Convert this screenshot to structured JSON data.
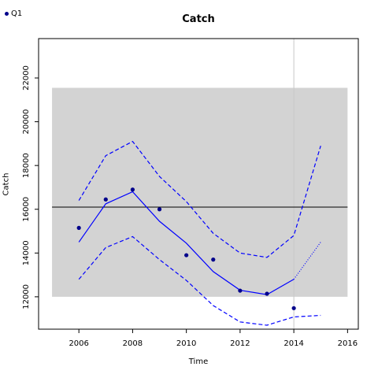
{
  "legend": {
    "label": "Q1",
    "color": "#00008b"
  },
  "chart_data": {
    "type": "line",
    "title": "Catch",
    "xlabel": "Time",
    "ylabel": "Catch",
    "xlim": [
      2004.5,
      2016.4
    ],
    "ylim": [
      10520,
      23800
    ],
    "xticks": [
      2006,
      2008,
      2010,
      2012,
      2014,
      2016
    ],
    "yticks": [
      12000,
      14000,
      16000,
      18000,
      20000,
      22000
    ],
    "grid": false,
    "legend_position": "top-left",
    "shaded_region": {
      "x": [
        2005,
        2016
      ],
      "y": [
        12000,
        21550
      ],
      "color": "#d3d3d3"
    },
    "reference_hline": {
      "y": 16100,
      "color": "#000000"
    },
    "reference_vline": {
      "x": 2014,
      "color": "#c8c8c8"
    },
    "series": [
      {
        "name": "Q1",
        "kind": "points",
        "color": "#00008b",
        "x": [
          2006,
          2007,
          2008,
          2009,
          2010,
          2011,
          2012,
          2013,
          2014
        ],
        "y": [
          15150,
          16450,
          16900,
          16000,
          13900,
          13700,
          12280,
          12140,
          11480
        ]
      },
      {
        "kind": "line",
        "style": "solid",
        "color": "#0000ff",
        "x": [
          2006,
          2007,
          2008,
          2009,
          2010,
          2011,
          2012,
          2013,
          2014
        ],
        "y": [
          14500,
          16250,
          16800,
          15450,
          14450,
          13150,
          12300,
          12100,
          12800
        ]
      },
      {
        "kind": "line",
        "style": "dashed",
        "color": "#0000ff",
        "x": [
          2006,
          2007,
          2008,
          2009,
          2010,
          2011,
          2012,
          2013,
          2014,
          2015
        ],
        "y": [
          16400,
          18450,
          19100,
          17500,
          16350,
          14900,
          14000,
          13800,
          14800,
          18900
        ]
      },
      {
        "kind": "line",
        "style": "dashed",
        "color": "#0000ff",
        "x": [
          2006,
          2007,
          2008,
          2009,
          2010,
          2011,
          2012,
          2013,
          2014,
          2015
        ],
        "y": [
          12800,
          14250,
          14750,
          13700,
          12750,
          11600,
          10850,
          10700,
          11080,
          11150
        ]
      },
      {
        "kind": "line",
        "style": "dotted",
        "color": "#0000ff",
        "x": [
          2014,
          2015
        ],
        "y": [
          12800,
          14500
        ]
      }
    ]
  }
}
